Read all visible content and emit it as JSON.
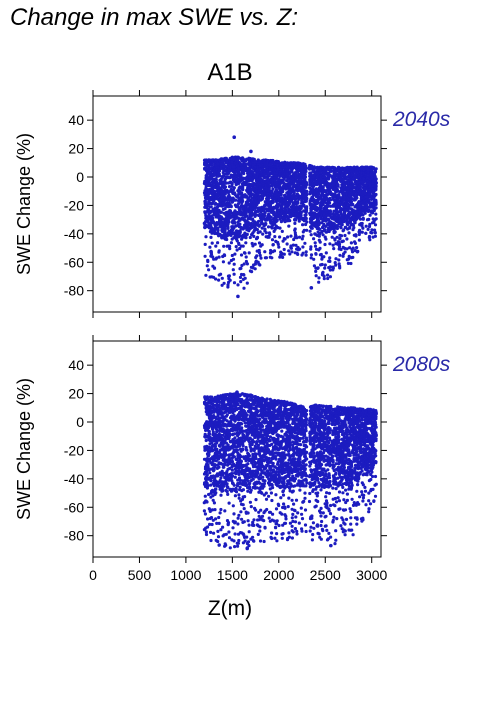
{
  "page_title": "Change in max SWE vs. Z:",
  "colors": {
    "points": "#1c1cc0",
    "period_label": "#2a2aa8",
    "axis": "#000000"
  },
  "chart_data": [
    {
      "type": "scatter",
      "title": "A1B",
      "period": "2040s",
      "xlabel": "",
      "ylabel": "SWE Change (%)",
      "xlim": [
        0,
        3100
      ],
      "ylim": [
        -95,
        57
      ],
      "xticks": [
        0,
        500,
        1000,
        1500,
        2000,
        2500,
        3000
      ],
      "yticks": [
        40,
        20,
        0,
        -20,
        -40,
        -60,
        -80
      ],
      "x_range_of_points": [
        1200,
        3050
      ],
      "envelope": [
        {
          "x": 1200,
          "top": 12,
          "bottom": -70
        },
        {
          "x": 1300,
          "top": 12,
          "bottom": -72
        },
        {
          "x": 1400,
          "top": 13,
          "bottom": -78
        },
        {
          "x": 1500,
          "top": 14,
          "bottom": -80
        },
        {
          "x": 1600,
          "top": 14,
          "bottom": -82
        },
        {
          "x": 1700,
          "top": 13,
          "bottom": -70
        },
        {
          "x": 1800,
          "top": 12,
          "bottom": -62
        },
        {
          "x": 1900,
          "top": 12,
          "bottom": -60
        },
        {
          "x": 2000,
          "top": 11,
          "bottom": -58
        },
        {
          "x": 2100,
          "top": 10,
          "bottom": -56
        },
        {
          "x": 2200,
          "top": 10,
          "bottom": -55
        },
        {
          "x": 2300,
          "top": 9,
          "bottom": -55
        },
        {
          "x": 2400,
          "top": 7,
          "bottom": -75
        },
        {
          "x": 2500,
          "top": 7,
          "bottom": -72
        },
        {
          "x": 2600,
          "top": 7,
          "bottom": -70
        },
        {
          "x": 2700,
          "top": 7,
          "bottom": -60
        },
        {
          "x": 2800,
          "top": 7,
          "bottom": -62
        },
        {
          "x": 2900,
          "top": 7,
          "bottom": -45
        },
        {
          "x": 3000,
          "top": 7,
          "bottom": -45
        },
        {
          "x": 3050,
          "top": 6,
          "bottom": -42
        }
      ],
      "outliers": [
        {
          "x": 1520,
          "y": 28
        },
        {
          "x": 1700,
          "y": 18
        },
        {
          "x": 1560,
          "y": -84
        },
        {
          "x": 2350,
          "y": -78
        }
      ]
    },
    {
      "type": "scatter",
      "title": "",
      "period": "2080s",
      "xlabel": "Z(m)",
      "ylabel": "SWE Change (%)",
      "xlim": [
        0,
        3100
      ],
      "ylim": [
        -95,
        57
      ],
      "xticks": [
        0,
        500,
        1000,
        1500,
        2000,
        2500,
        3000
      ],
      "yticks": [
        40,
        20,
        0,
        -20,
        -40,
        -60,
        -80
      ],
      "x_range_of_points": [
        1200,
        3050
      ],
      "envelope": [
        {
          "x": 1200,
          "top": 18,
          "bottom": -86
        },
        {
          "x": 1300,
          "top": 18,
          "bottom": -86
        },
        {
          "x": 1400,
          "top": 19,
          "bottom": -88
        },
        {
          "x": 1500,
          "top": 20,
          "bottom": -90
        },
        {
          "x": 1600,
          "top": 20,
          "bottom": -90
        },
        {
          "x": 1700,
          "top": 19,
          "bottom": -88
        },
        {
          "x": 1800,
          "top": 17,
          "bottom": -85
        },
        {
          "x": 1900,
          "top": 16,
          "bottom": -84
        },
        {
          "x": 2000,
          "top": 15,
          "bottom": -84
        },
        {
          "x": 2100,
          "top": 14,
          "bottom": -83
        },
        {
          "x": 2200,
          "top": 12,
          "bottom": -82
        },
        {
          "x": 2300,
          "top": 10,
          "bottom": -82
        },
        {
          "x": 2400,
          "top": 12,
          "bottom": -84
        },
        {
          "x": 2500,
          "top": 11,
          "bottom": -84
        },
        {
          "x": 2600,
          "top": 11,
          "bottom": -86
        },
        {
          "x": 2700,
          "top": 10,
          "bottom": -82
        },
        {
          "x": 2800,
          "top": 10,
          "bottom": -80
        },
        {
          "x": 2900,
          "top": 9,
          "bottom": -70
        },
        {
          "x": 3000,
          "top": 9,
          "bottom": -60
        },
        {
          "x": 3050,
          "top": 8,
          "bottom": -55
        }
      ],
      "outliers": [
        {
          "x": 1550,
          "y": 21
        },
        {
          "x": 1660,
          "y": -89
        },
        {
          "x": 2560,
          "y": -87
        }
      ]
    }
  ]
}
